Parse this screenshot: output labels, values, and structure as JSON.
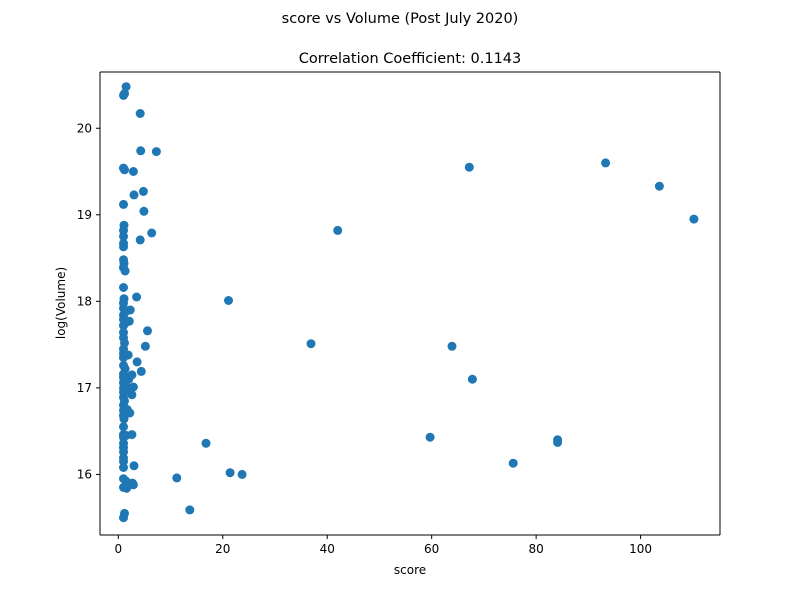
{
  "figure": {
    "suptitle": "score vs Volume (Post July 2020)"
  },
  "chart_data": {
    "type": "scatter",
    "title": "Correlation Coefficient: 0.1143",
    "xlabel": "score",
    "ylabel": "log(Volume)",
    "xlim": [
      -3.5,
      115.2
    ],
    "ylim": [
      15.3,
      20.65
    ],
    "x_ticks": [
      0,
      20,
      40,
      60,
      80,
      100
    ],
    "y_ticks": [
      16,
      17,
      18,
      19,
      20
    ],
    "x_tick_labels": [
      "0",
      "20",
      "40",
      "60",
      "80",
      "100"
    ],
    "y_tick_labels": [
      "16",
      "17",
      "18",
      "19",
      "20"
    ],
    "grid": false,
    "legend": "none",
    "marker_color": "#1f77b4",
    "points": [
      {
        "x": 1.5,
        "y": 20.48
      },
      {
        "x": 1.2,
        "y": 20.4
      },
      {
        "x": 1.0,
        "y": 20.38
      },
      {
        "x": 4.2,
        "y": 20.17
      },
      {
        "x": 4.3,
        "y": 19.74
      },
      {
        "x": 7.3,
        "y": 19.73
      },
      {
        "x": 1.0,
        "y": 19.54
      },
      {
        "x": 1.2,
        "y": 19.52
      },
      {
        "x": 2.9,
        "y": 19.5
      },
      {
        "x": 4.8,
        "y": 19.27
      },
      {
        "x": 3.0,
        "y": 19.23
      },
      {
        "x": 1.0,
        "y": 19.12
      },
      {
        "x": 4.9,
        "y": 19.04
      },
      {
        "x": 1.1,
        "y": 18.88
      },
      {
        "x": 1.0,
        "y": 18.82
      },
      {
        "x": 6.4,
        "y": 18.79
      },
      {
        "x": 1.0,
        "y": 18.75
      },
      {
        "x": 4.2,
        "y": 18.71
      },
      {
        "x": 1.0,
        "y": 18.67
      },
      {
        "x": 1.0,
        "y": 18.63
      },
      {
        "x": 1.0,
        "y": 18.48
      },
      {
        "x": 1.1,
        "y": 18.44
      },
      {
        "x": 1.0,
        "y": 18.39
      },
      {
        "x": 1.3,
        "y": 18.35
      },
      {
        "x": 1.0,
        "y": 18.16
      },
      {
        "x": 3.5,
        "y": 18.05
      },
      {
        "x": 1.1,
        "y": 18.03
      },
      {
        "x": 1.0,
        "y": 17.98
      },
      {
        "x": 1.0,
        "y": 17.92
      },
      {
        "x": 2.3,
        "y": 17.9
      },
      {
        "x": 1.4,
        "y": 17.88
      },
      {
        "x": 1.0,
        "y": 17.84
      },
      {
        "x": 1.0,
        "y": 17.79
      },
      {
        "x": 2.1,
        "y": 17.77
      },
      {
        "x": 1.6,
        "y": 17.76
      },
      {
        "x": 1.0,
        "y": 17.72
      },
      {
        "x": 5.6,
        "y": 17.66
      },
      {
        "x": 1.0,
        "y": 17.64
      },
      {
        "x": 1.0,
        "y": 17.58
      },
      {
        "x": 1.2,
        "y": 17.52
      },
      {
        "x": 5.2,
        "y": 17.48
      },
      {
        "x": 1.0,
        "y": 17.45
      },
      {
        "x": 1.0,
        "y": 17.4
      },
      {
        "x": 1.9,
        "y": 17.38
      },
      {
        "x": 1.0,
        "y": 17.35
      },
      {
        "x": 3.6,
        "y": 17.3
      },
      {
        "x": 1.0,
        "y": 17.26
      },
      {
        "x": 1.3,
        "y": 17.22
      },
      {
        "x": 4.4,
        "y": 17.19
      },
      {
        "x": 1.0,
        "y": 17.16
      },
      {
        "x": 2.6,
        "y": 17.15
      },
      {
        "x": 1.0,
        "y": 17.12
      },
      {
        "x": 2.0,
        "y": 17.1
      },
      {
        "x": 1.0,
        "y": 17.06
      },
      {
        "x": 1.4,
        "y": 17.03
      },
      {
        "x": 2.9,
        "y": 17.01
      },
      {
        "x": 1.0,
        "y": 17.0
      },
      {
        "x": 2.2,
        "y": 16.97
      },
      {
        "x": 1.0,
        "y": 16.95
      },
      {
        "x": 2.6,
        "y": 16.92
      },
      {
        "x": 1.0,
        "y": 16.89
      },
      {
        "x": 1.2,
        "y": 16.85
      },
      {
        "x": 1.0,
        "y": 16.8
      },
      {
        "x": 1.7,
        "y": 16.75
      },
      {
        "x": 1.0,
        "y": 16.74
      },
      {
        "x": 2.2,
        "y": 16.71
      },
      {
        "x": 1.0,
        "y": 16.68
      },
      {
        "x": 1.1,
        "y": 16.64
      },
      {
        "x": 1.0,
        "y": 16.55
      },
      {
        "x": 1.0,
        "y": 16.46
      },
      {
        "x": 1.5,
        "y": 16.45
      },
      {
        "x": 2.6,
        "y": 16.46
      },
      {
        "x": 1.0,
        "y": 16.43
      },
      {
        "x": 1.0,
        "y": 16.36
      },
      {
        "x": 1.0,
        "y": 16.31
      },
      {
        "x": 1.0,
        "y": 16.26
      },
      {
        "x": 1.0,
        "y": 16.19
      },
      {
        "x": 1.0,
        "y": 16.15
      },
      {
        "x": 3.0,
        "y": 16.1
      },
      {
        "x": 1.0,
        "y": 16.08
      },
      {
        "x": 1.0,
        "y": 15.95
      },
      {
        "x": 1.5,
        "y": 15.92
      },
      {
        "x": 2.7,
        "y": 15.9
      },
      {
        "x": 2.9,
        "y": 15.88
      },
      {
        "x": 1.0,
        "y": 15.85
      },
      {
        "x": 1.6,
        "y": 15.84
      },
      {
        "x": 1.2,
        "y": 15.55
      },
      {
        "x": 1.0,
        "y": 15.5
      },
      {
        "x": 11.2,
        "y": 15.96
      },
      {
        "x": 13.7,
        "y": 15.59
      },
      {
        "x": 16.8,
        "y": 16.36
      },
      {
        "x": 21.1,
        "y": 18.01
      },
      {
        "x": 21.4,
        "y": 16.02
      },
      {
        "x": 23.7,
        "y": 16.0
      },
      {
        "x": 36.9,
        "y": 17.51
      },
      {
        "x": 42.0,
        "y": 18.82
      },
      {
        "x": 59.7,
        "y": 16.43
      },
      {
        "x": 63.9,
        "y": 17.48
      },
      {
        "x": 67.2,
        "y": 19.55
      },
      {
        "x": 67.8,
        "y": 17.1
      },
      {
        "x": 75.6,
        "y": 16.13
      },
      {
        "x": 84.1,
        "y": 16.4
      },
      {
        "x": 84.1,
        "y": 16.37
      },
      {
        "x": 93.3,
        "y": 19.6
      },
      {
        "x": 103.6,
        "y": 19.33
      },
      {
        "x": 110.2,
        "y": 18.95
      }
    ]
  }
}
